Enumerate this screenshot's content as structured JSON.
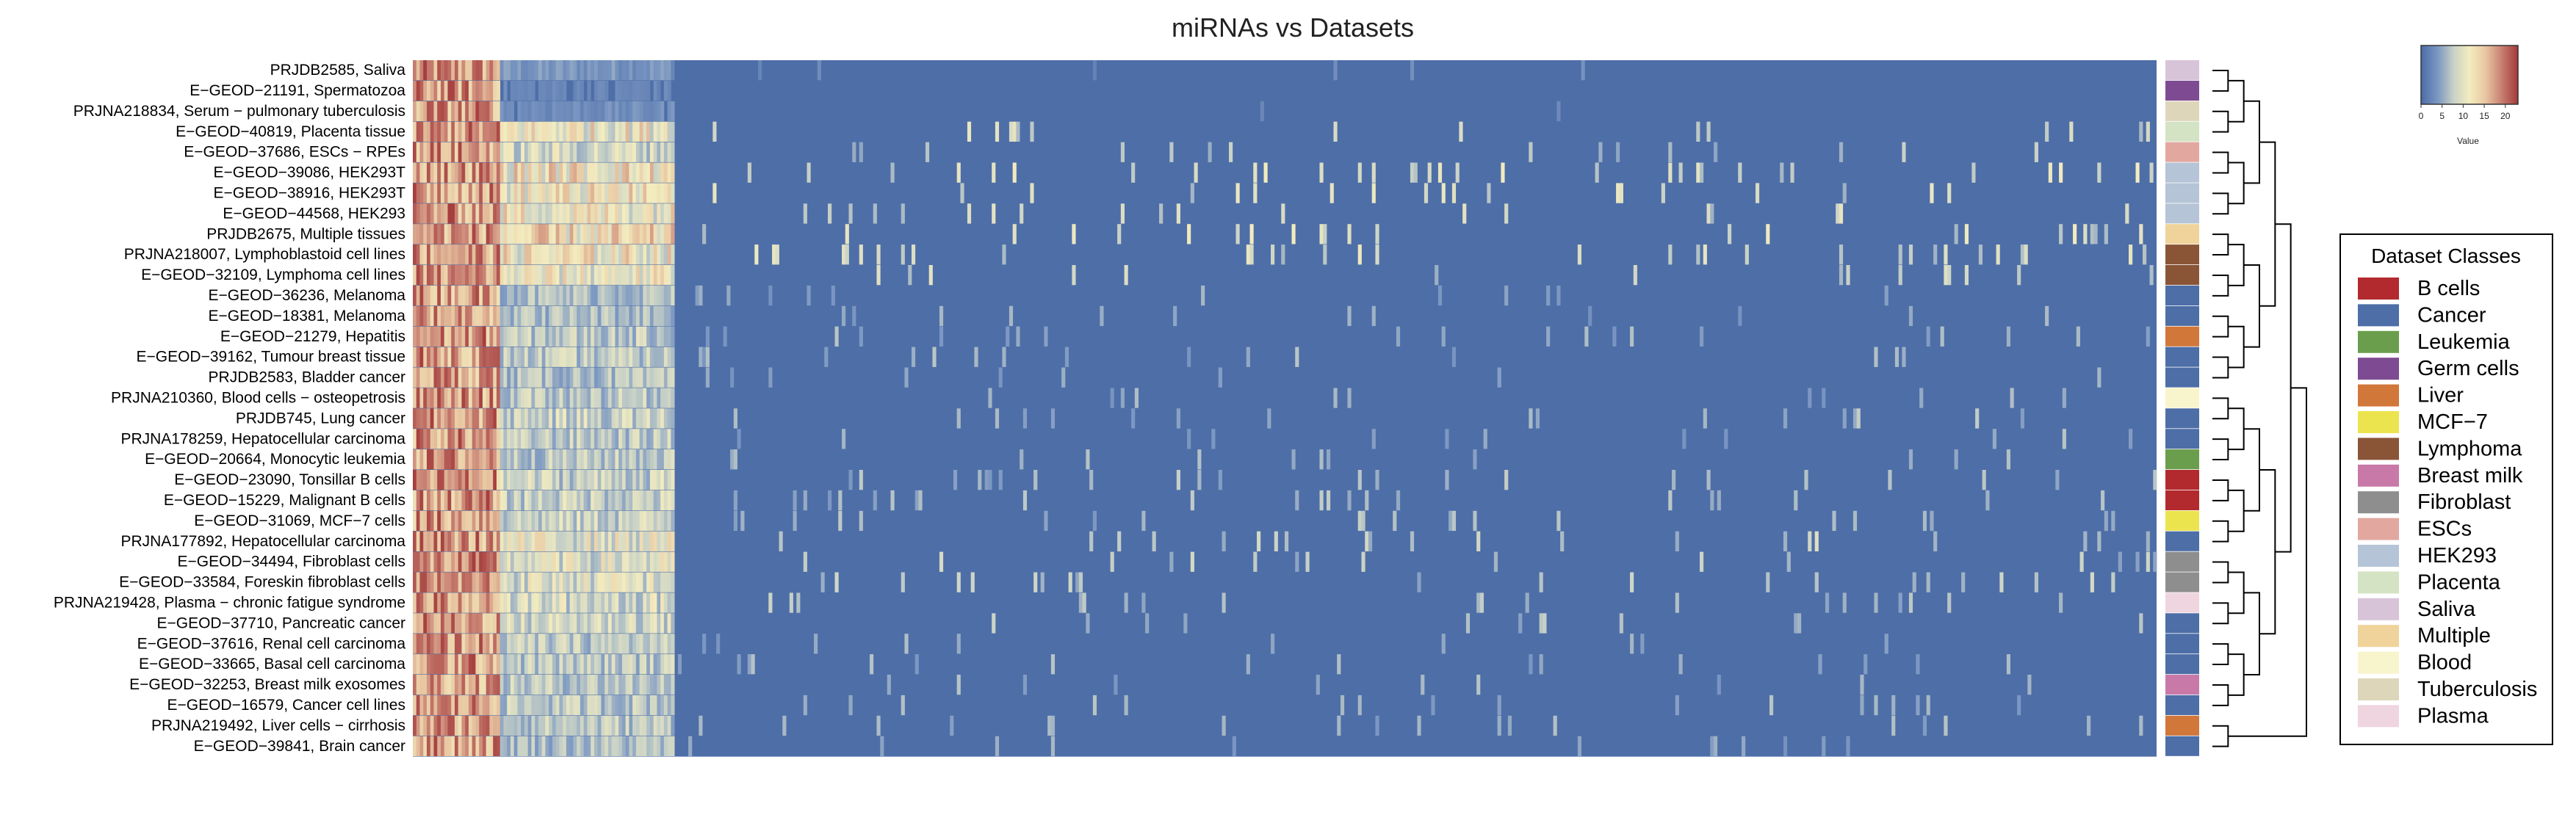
{
  "chart_data": {
    "type": "heatmap",
    "title": "miRNAs vs Datasets",
    "xlabel": "",
    "ylabel": "",
    "value_label": "Value",
    "value_range": [
      0,
      23
    ],
    "colorbar_ticks": [
      0,
      5,
      10,
      15,
      20
    ],
    "colorscale": [
      "#4e6ea8",
      "#7b97c2",
      "#c9d2c6",
      "#f3ecbf",
      "#e8c7a2",
      "#c98173",
      "#a43d3d"
    ],
    "rows": [
      {
        "label": "PRJDB2585, Saliva",
        "class": "Saliva",
        "intensity": 0.25
      },
      {
        "label": "E−GEOD−21191, Spermatozoa",
        "class": "Germ cells",
        "intensity": 0.15
      },
      {
        "label": "PRJNA218834, Serum − pulmonary tuberculosis",
        "class": "Tuberculosis",
        "intensity": 0.2
      },
      {
        "label": "E−GEOD−40819, Placenta tissue",
        "class": "Placenta",
        "intensity": 0.8
      },
      {
        "label": "E−GEOD−37686, ESCs − RPEs",
        "class": "ESCs",
        "intensity": 0.6
      },
      {
        "label": "E−GEOD−39086, HEK293T",
        "class": "HEK293",
        "intensity": 0.85
      },
      {
        "label": "E−GEOD−38916, HEK293T",
        "class": "HEK293",
        "intensity": 0.8
      },
      {
        "label": "E−GEOD−44568, HEK293",
        "class": "HEK293",
        "intensity": 0.8
      },
      {
        "label": "PRJDB2675, Multiple tissues",
        "class": "Multiple",
        "intensity": 0.85
      },
      {
        "label": "PRJNA218007, Lymphoblastoid cell lines",
        "class": "Lymphoma",
        "intensity": 0.8
      },
      {
        "label": "E−GEOD−32109, Lymphoma cell lines",
        "class": "Lymphoma",
        "intensity": 0.75
      },
      {
        "label": "E−GEOD−36236, Melanoma",
        "class": "Cancer",
        "intensity": 0.45
      },
      {
        "label": "E−GEOD−18381, Melanoma",
        "class": "Cancer",
        "intensity": 0.45
      },
      {
        "label": "E−GEOD−21279, Hepatitis",
        "class": "Liver",
        "intensity": 0.5
      },
      {
        "label": "E−GEOD−39162, Tumour breast tissue",
        "class": "Cancer",
        "intensity": 0.5
      },
      {
        "label": "PRJDB2583, Bladder cancer",
        "class": "Cancer",
        "intensity": 0.45
      },
      {
        "label": "PRJNA210360, Blood cells − osteopetrosis",
        "class": "Blood",
        "intensity": 0.5
      },
      {
        "label": "PRJDB745, Lung cancer",
        "class": "Cancer",
        "intensity": 0.55
      },
      {
        "label": "PRJNA178259, Hepatocellular carcinoma",
        "class": "Cancer",
        "intensity": 0.5
      },
      {
        "label": "E−GEOD−20664, Monocytic leukemia",
        "class": "Leukemia",
        "intensity": 0.5
      },
      {
        "label": "E−GEOD−23090, Tonsillar B cells",
        "class": "B cells",
        "intensity": 0.55
      },
      {
        "label": "E−GEOD−15229, Malignant B cells",
        "class": "B cells",
        "intensity": 0.55
      },
      {
        "label": "E−GEOD−31069, MCF−7 cells",
        "class": "MCF−7",
        "intensity": 0.55
      },
      {
        "label": "PRJNA177892, Hepatocellular carcinoma",
        "class": "Cancer",
        "intensity": 0.7
      },
      {
        "label": "E−GEOD−34494, Fibroblast cells",
        "class": "Fibroblast",
        "intensity": 0.65
      },
      {
        "label": "E−GEOD−33584, Foreskin fibroblast cells",
        "class": "Fibroblast",
        "intensity": 0.65
      },
      {
        "label": "PRJNA219428, Plasma − chronic fatigue syndrome",
        "class": "Plasma",
        "intensity": 0.6
      },
      {
        "label": "E−GEOD−37710, Pancreatic cancer",
        "class": "Cancer",
        "intensity": 0.6
      },
      {
        "label": "E−GEOD−37616, Renal cell carcinoma",
        "class": "Cancer",
        "intensity": 0.5
      },
      {
        "label": "E−GEOD−33665, Basal cell carcinoma",
        "class": "Cancer",
        "intensity": 0.5
      },
      {
        "label": "E−GEOD−32253, Breast milk exosomes",
        "class": "Breast milk",
        "intensity": 0.5
      },
      {
        "label": "E−GEOD−16579, Cancer cell lines",
        "class": "Cancer",
        "intensity": 0.5
      },
      {
        "label": "PRJNA219492, Liver cells − cirrhosis",
        "class": "Liver",
        "intensity": 0.5
      },
      {
        "label": "E−GEOD−39841, Brain cancer",
        "class": "Cancer",
        "intensity": 0.45
      }
    ],
    "legend": {
      "title": "Dataset Classes",
      "entries": [
        {
          "label": "B cells",
          "color": "#b22a2e"
        },
        {
          "label": "Cancer",
          "color": "#4d6ea6"
        },
        {
          "label": "Leukemia",
          "color": "#6a9e4c"
        },
        {
          "label": "Germ cells",
          "color": "#7e4b92"
        },
        {
          "label": "Liver",
          "color": "#d2773a"
        },
        {
          "label": "MCF−7",
          "color": "#ece44e"
        },
        {
          "label": "Lymphoma",
          "color": "#8a5537"
        },
        {
          "label": "Breast milk",
          "color": "#c979a8"
        },
        {
          "label": "Fibroblast",
          "color": "#8e8e8e"
        },
        {
          "label": "ESCs",
          "color": "#e2a8a0"
        },
        {
          "label": "HEK293",
          "color": "#b5c4d6"
        },
        {
          "label": "Placenta",
          "color": "#d4e3c3"
        },
        {
          "label": "Saliva",
          "color": "#d8c4d8"
        },
        {
          "label": "Multiple",
          "color": "#efd39a"
        },
        {
          "label": "Blood",
          "color": "#f8f5cc"
        },
        {
          "label": "Tuberculosis",
          "color": "#ded6bb"
        },
        {
          "label": "Plasma",
          "color": "#efd5df"
        }
      ]
    },
    "dendrogram_order": [
      0,
      1,
      2,
      3,
      4,
      5,
      6,
      7,
      8,
      9,
      10,
      11,
      12,
      13,
      14,
      15,
      16,
      17,
      18,
      19,
      20,
      21,
      22,
      23,
      24,
      25,
      26,
      27,
      28,
      29,
      30,
      31,
      32,
      33
    ]
  }
}
